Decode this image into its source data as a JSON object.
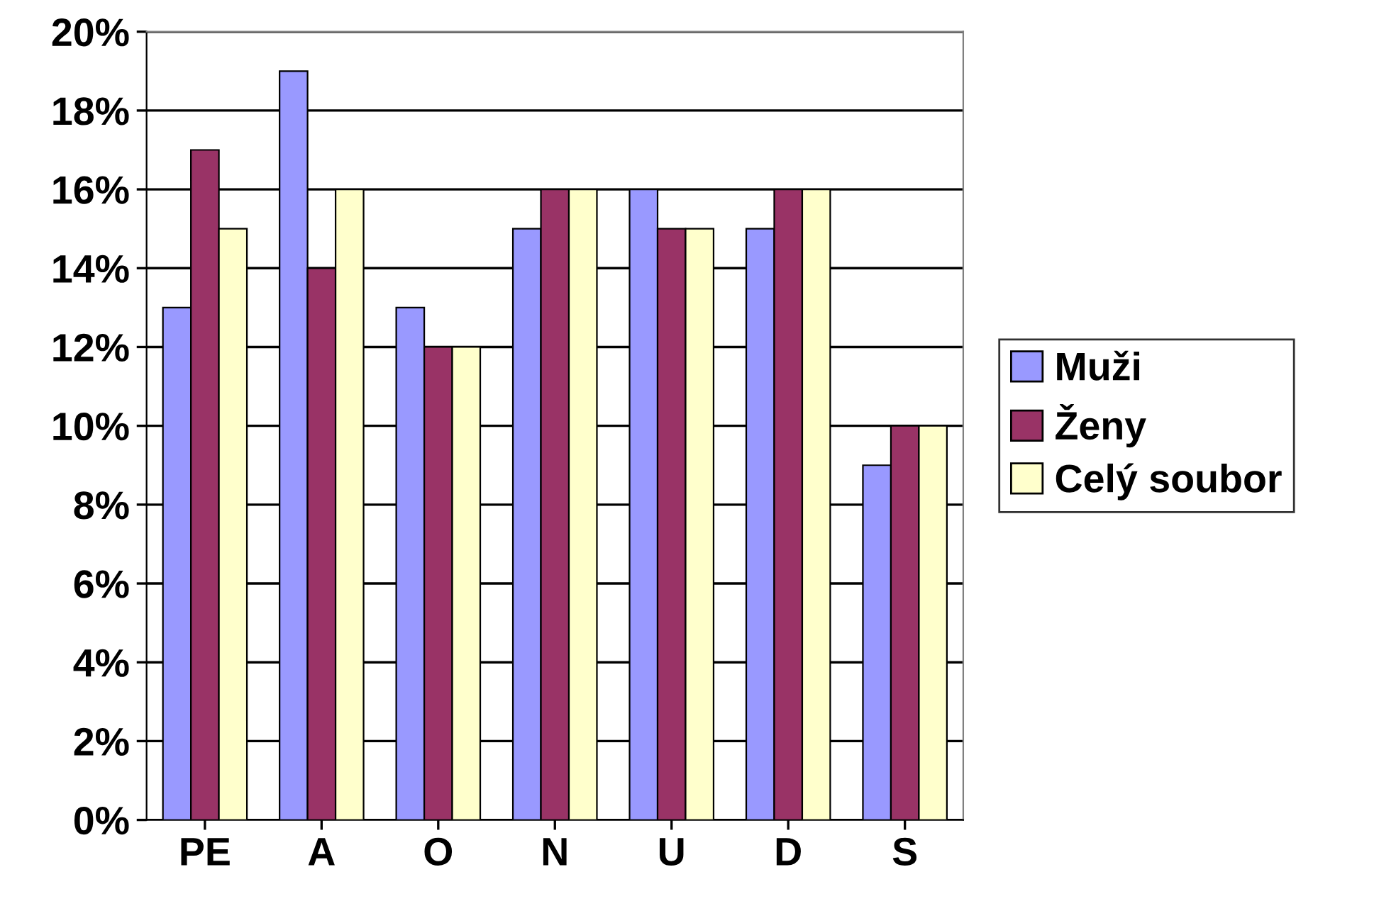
{
  "chart_data": {
    "type": "bar",
    "categories": [
      "PE",
      "A",
      "O",
      "N",
      "U",
      "D",
      "S"
    ],
    "series": [
      {
        "name": "Muži",
        "color": "#9999ff",
        "values": [
          13,
          19,
          13,
          15,
          16,
          15,
          9
        ]
      },
      {
        "name": "Ženy",
        "color": "#993366",
        "values": [
          17,
          14,
          12,
          16,
          15,
          16,
          10
        ]
      },
      {
        "name": "Celý soubor",
        "color": "#ffffcc",
        "values": [
          15,
          16,
          12,
          16,
          15,
          16,
          10
        ]
      }
    ],
    "ylim": [
      0,
      20
    ],
    "yticks": [
      {
        "value": 0,
        "label": "0%"
      },
      {
        "value": 2,
        "label": "2%"
      },
      {
        "value": 4,
        "label": "4%"
      },
      {
        "value": 6,
        "label": "6%"
      },
      {
        "value": 8,
        "label": "8%"
      },
      {
        "value": 10,
        "label": "10%"
      },
      {
        "value": 12,
        "label": "12%"
      },
      {
        "value": 14,
        "label": "14%"
      },
      {
        "value": 16,
        "label": "16%"
      },
      {
        "value": 18,
        "label": "18%"
      },
      {
        "value": 20,
        "label": "20%"
      }
    ],
    "grid": "y",
    "legend": "right"
  }
}
